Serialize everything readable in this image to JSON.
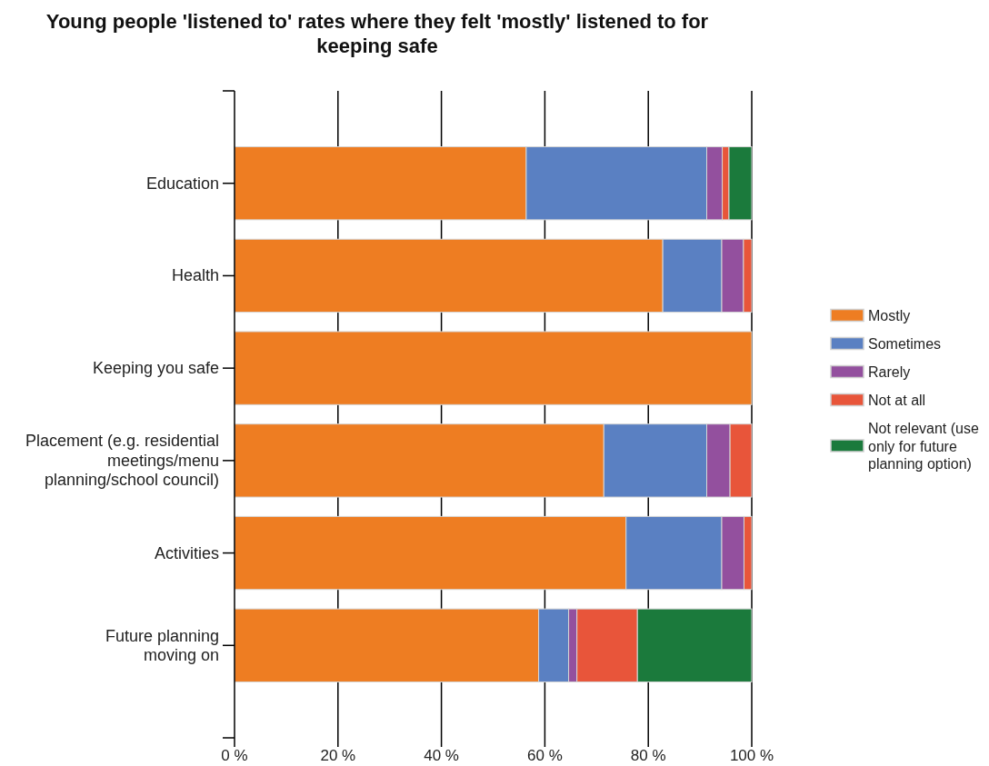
{
  "chart_data": {
    "type": "bar",
    "orientation": "horizontal",
    "stacked": true,
    "title": "Young people 'listened to' rates where they felt 'mostly' listened to for keeping safe",
    "categories": [
      "Education",
      "Health",
      "Keeping you safe",
      "Placement (e.g. residential\nmeetings/menu\nplanning/school council)",
      "Activities",
      "Future planning\nmoving on"
    ],
    "series": [
      {
        "name": "Mostly",
        "color": "#ee7d22",
        "values": [
          56.4,
          82.8,
          100,
          71.4,
          75.7,
          58.8
        ]
      },
      {
        "name": "Sometimes",
        "color": "#5a80c2",
        "values": [
          34.9,
          11.4,
          null,
          19.9,
          18.5,
          5.8
        ]
      },
      {
        "name": "Rarely",
        "color": "#93509e",
        "values": [
          3.0,
          4.2,
          null,
          4.5,
          4.3,
          1.6
        ]
      },
      {
        "name": "Not at all",
        "color": "#e8553a",
        "values": [
          1.3,
          1.6,
          null,
          4.2,
          1.5,
          11.7
        ]
      },
      {
        "name": "Not relevant (use only for future planning option)",
        "color": "#1b7a3c",
        "values": [
          4.4,
          null,
          null,
          null,
          null,
          22.1
        ]
      }
    ],
    "xlim": [
      0,
      100
    ],
    "xticks": [
      {
        "value": 0,
        "label": "0 %"
      },
      {
        "value": 20,
        "label": "20 %"
      },
      {
        "value": 40,
        "label": "40 %"
      },
      {
        "value": 60,
        "label": "60 %"
      },
      {
        "value": 80,
        "label": "80 %"
      },
      {
        "value": 100,
        "label": "100 %"
      }
    ],
    "grid": "x",
    "legend": "right"
  }
}
